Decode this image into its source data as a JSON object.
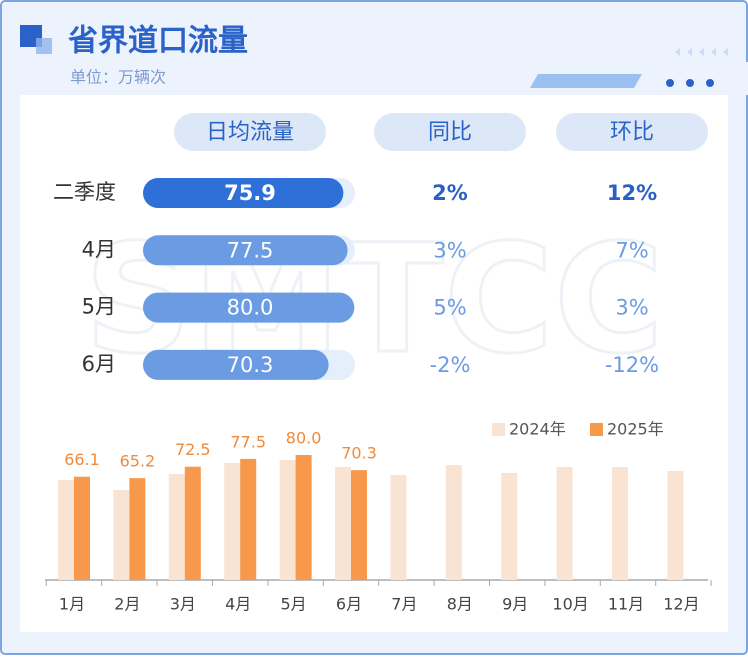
{
  "header": {
    "title": "省界道口流量",
    "unit": "单位：万辆次"
  },
  "watermark": "SMTCC",
  "table": {
    "columns": [
      "日均流量",
      "同比",
      "环比"
    ],
    "rows": [
      [
        "二季度",
        "75.9",
        "2%",
        "12%"
      ],
      [
        "4月",
        "77.5",
        "3%",
        "7%"
      ],
      [
        "5月",
        "80.0",
        "5%",
        "3%"
      ],
      [
        "6月",
        "70.3",
        "-2%",
        "-12%"
      ]
    ]
  },
  "chart_data": {
    "type": "bar",
    "categories": [
      "1月",
      "2月",
      "3月",
      "4月",
      "5月",
      "6月",
      "7月",
      "8月",
      "9月",
      "10月",
      "11月",
      "12月"
    ],
    "series": [
      {
        "name": "2024年",
        "color": "#f9e3d3",
        "values": [
          64.0,
          57.6,
          67.8,
          74.9,
          76.8,
          72.3,
          67.2,
          73.6,
          68.5,
          72.3,
          72.3,
          69.8
        ]
      },
      {
        "name": "2025年",
        "color": "#f7984a",
        "values": [
          66.1,
          65.2,
          72.5,
          77.5,
          80.0,
          70.3,
          null,
          null,
          null,
          null,
          null,
          null
        ],
        "value_labels": [
          "66.1",
          "65.2",
          "72.5",
          "77.5",
          "80.0",
          "70.3",
          null,
          null,
          null,
          null,
          null,
          null
        ]
      }
    ],
    "legend": "top-right"
  }
}
